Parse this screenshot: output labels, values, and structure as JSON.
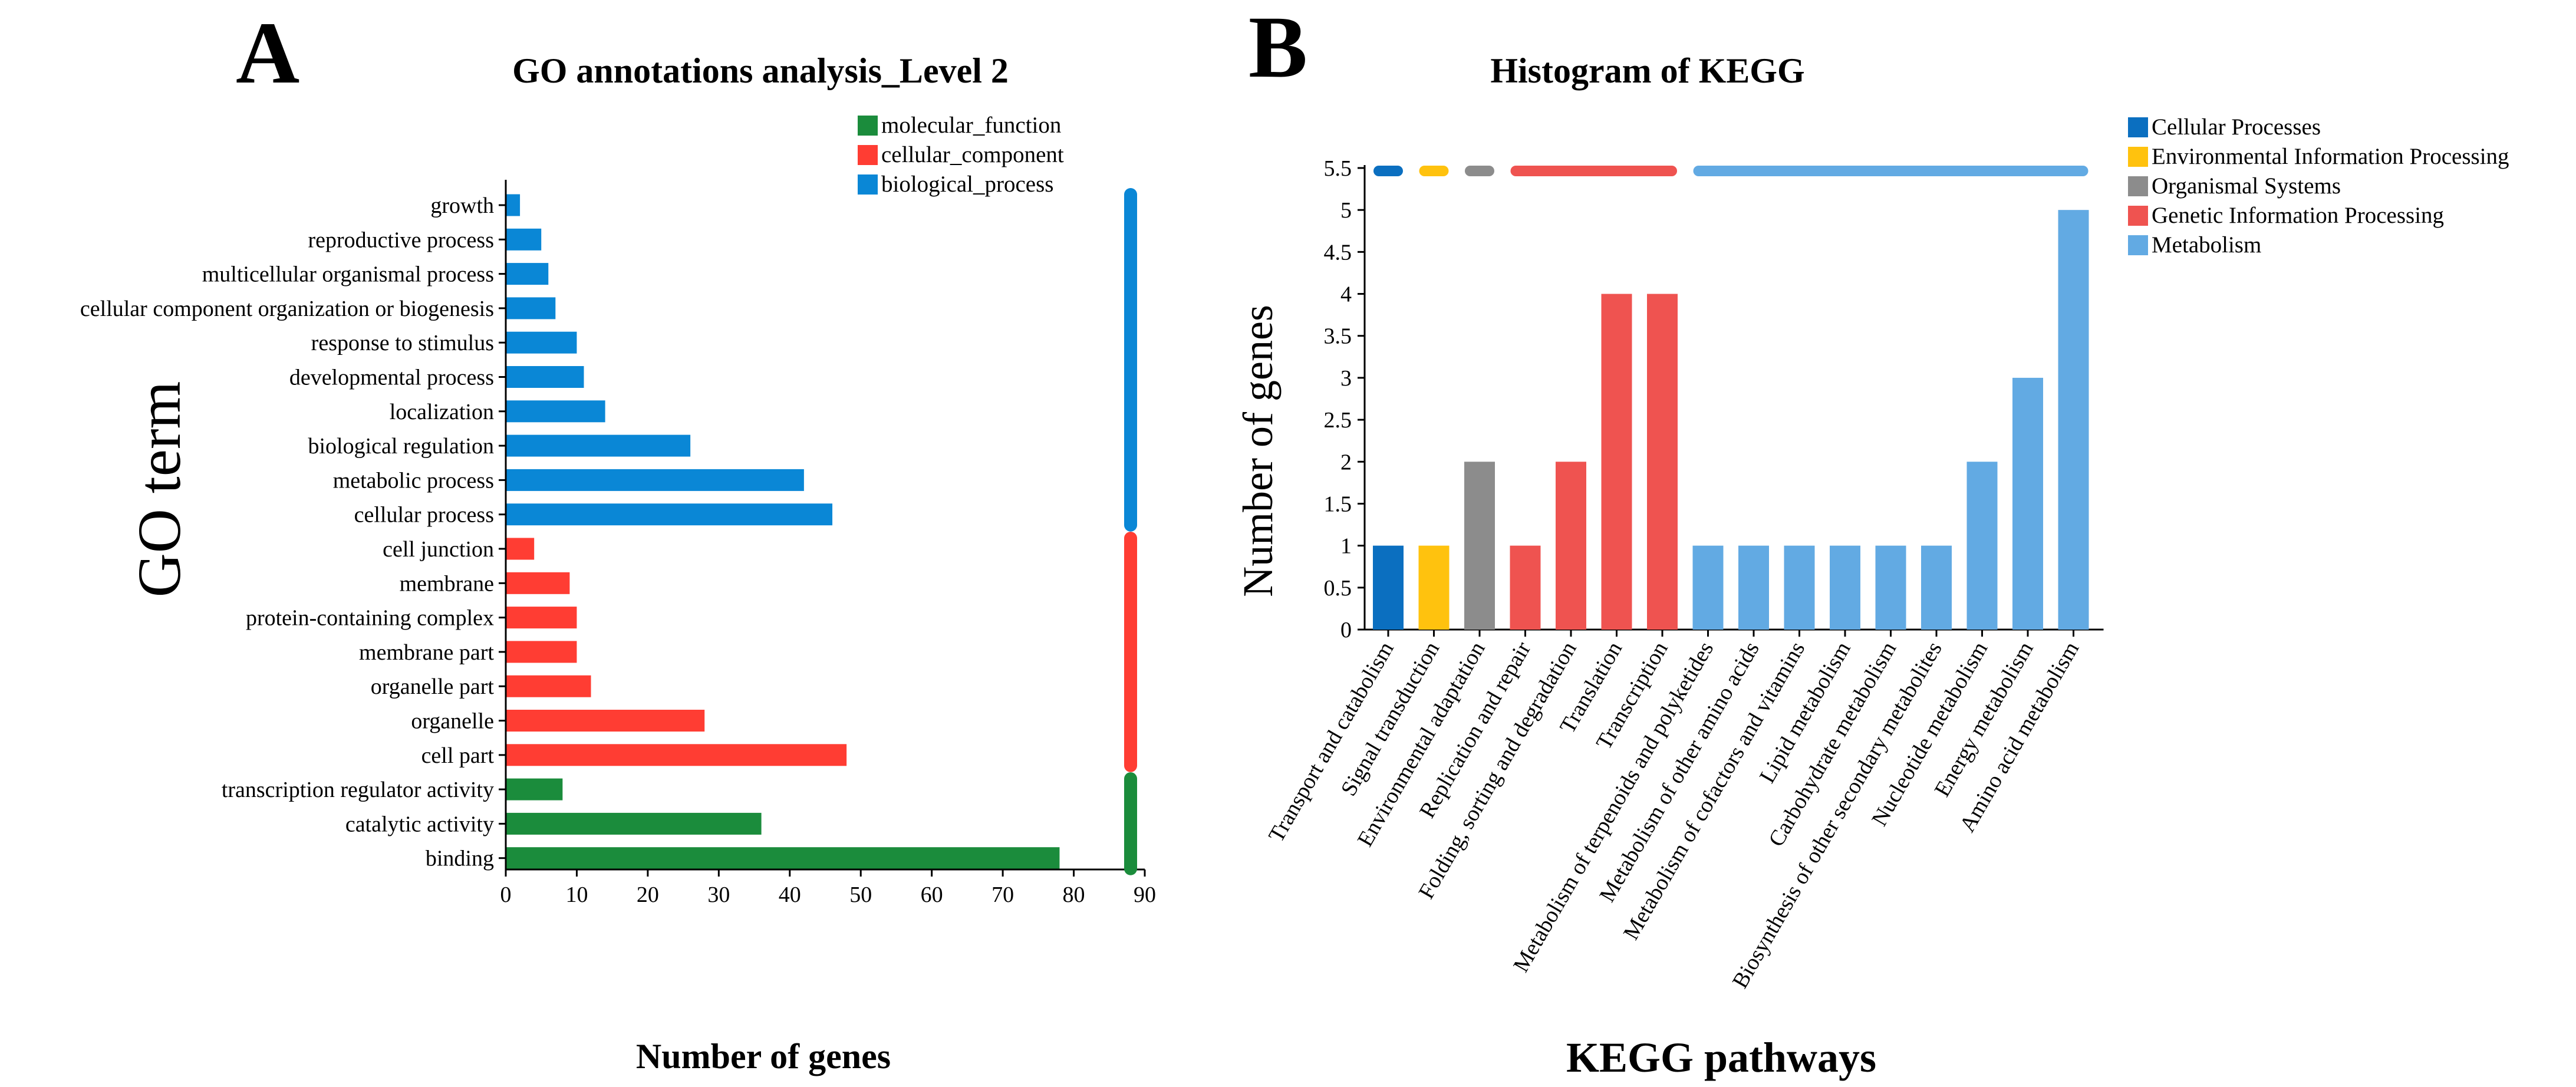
{
  "panel_labels": [
    "A",
    "B"
  ],
  "colors": {
    "molecular_function": "#1b8c3c",
    "cellular_component": "#ff3d33",
    "biological_process": "#0a87d6",
    "cellular_processes": "#0b6fc0",
    "environmental_information_processing": "#ffc20e",
    "organismal_systems": "#8c8c8c",
    "genetic_information_processing": "#ef5350",
    "metabolism": "#62aae3"
  },
  "chart_data": [
    {
      "type": "bar",
      "orientation": "horizontal",
      "title": "GO annotations analysis_Level 2",
      "xlabel": "Number of genes",
      "ylabel": "GO term",
      "xlim": [
        0,
        90
      ],
      "xticks": [
        "0",
        "10",
        "20",
        "30",
        "40",
        "50",
        "60",
        "70",
        "80",
        "90"
      ],
      "legend_position": "top-right",
      "legend": [
        {
          "name": "molecular_function",
          "color_key": "molecular_function"
        },
        {
          "name": "cellular_component",
          "color_key": "cellular_component"
        },
        {
          "name": "biological_process",
          "color_key": "biological_process"
        }
      ],
      "categories": [
        "growth",
        "reproductive process",
        "multicellular organismal process",
        "cellular component organization or biogenesis",
        "response to stimulus",
        "developmental process",
        "localization",
        "biological regulation",
        "metabolic process",
        "cellular process",
        "cell junction",
        "membrane",
        "protein-containing complex",
        "membrane part",
        "organelle part",
        "organelle",
        "cell part",
        "transcription regulator activity",
        "catalytic activity",
        "binding"
      ],
      "values": [
        2,
        5,
        6,
        7,
        10,
        11,
        14,
        26,
        42,
        46,
        4,
        9,
        10,
        10,
        12,
        28,
        48,
        8,
        36,
        78
      ],
      "groups": [
        "biological_process",
        "biological_process",
        "biological_process",
        "biological_process",
        "biological_process",
        "biological_process",
        "biological_process",
        "biological_process",
        "biological_process",
        "biological_process",
        "cellular_component",
        "cellular_component",
        "cellular_component",
        "cellular_component",
        "cellular_component",
        "cellular_component",
        "cellular_component",
        "molecular_function",
        "molecular_function",
        "molecular_function"
      ]
    },
    {
      "type": "bar",
      "title": "Histogram of KEGG",
      "xlabel": "KEGG pathways",
      "ylabel": "Number of genes",
      "ylim": [
        0,
        5.5
      ],
      "yticks": [
        "0",
        "0.5",
        "1",
        "1.5",
        "2",
        "2.5",
        "3",
        "3.5",
        "4",
        "4.5",
        "5",
        "5.5"
      ],
      "legend_position": "top-right",
      "legend": [
        {
          "name": "Cellular Processes",
          "color_key": "cellular_processes"
        },
        {
          "name": "Environmental Information Processing",
          "color_key": "environmental_information_processing"
        },
        {
          "name": "Organismal Systems",
          "color_key": "organismal_systems"
        },
        {
          "name": "Genetic Information Processing",
          "color_key": "genetic_information_processing"
        },
        {
          "name": "Metabolism",
          "color_key": "metabolism"
        }
      ],
      "categories": [
        "Transport and catabolism",
        "Signal transduction",
        "Environmental adaptation",
        "Replication and repair",
        "Folding, sorting and degradation",
        "Translation",
        "Transcription",
        "Metabolism of terpenoids and polyketides",
        "Metabolism of other amino acids",
        "Metabolism of cofactors and vitamins",
        "Lipid metabolism",
        "Carbohydrate metabolism",
        "Biosynthesis of other secondary metabolites",
        "Nucleotide metabolism",
        "Energy metabolism",
        "Amino acid metabolism"
      ],
      "values": [
        1,
        1,
        2,
        1,
        2,
        4,
        4,
        1,
        1,
        1,
        1,
        1,
        1,
        2,
        3,
        5
      ],
      "groups": [
        "cellular_processes",
        "environmental_information_processing",
        "organismal_systems",
        "genetic_information_processing",
        "genetic_information_processing",
        "genetic_information_processing",
        "genetic_information_processing",
        "metabolism",
        "metabolism",
        "metabolism",
        "metabolism",
        "metabolism",
        "metabolism",
        "metabolism",
        "metabolism",
        "metabolism"
      ]
    }
  ]
}
